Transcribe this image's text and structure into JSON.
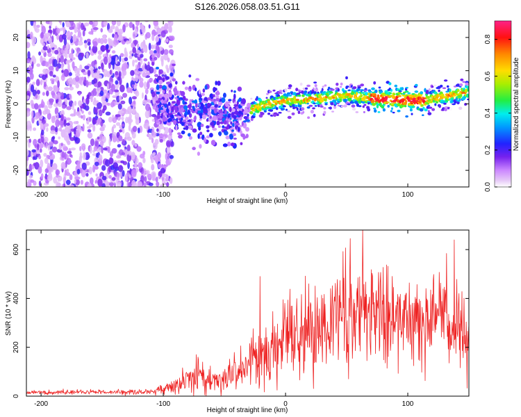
{
  "title": "S126.2026.058.03.51.G11",
  "colors": {
    "snr_line": "#ee2222",
    "colormap": [
      "#ffffff",
      "#e6c8f7",
      "#cc99ff",
      "#9933ee",
      "#6600ee",
      "#1133ff",
      "#00ccff",
      "#22ee66",
      "#ccee00",
      "#ff8800",
      "#ff1111",
      "#ff2277"
    ]
  },
  "chart_data": [
    {
      "type": "heatmap",
      "xlabel": "Height of straight line (km)",
      "ylabel": "Frequency (Hz)",
      "xlim": [
        -212,
        150
      ],
      "ylim": [
        -25,
        25
      ],
      "xticks": [
        -200,
        -100,
        0,
        100
      ],
      "yticks": [
        -20,
        -10,
        0,
        10,
        20
      ],
      "xtick_labels": [
        "-200",
        "-100",
        "0",
        "100"
      ],
      "ytick_labels": [
        "-20",
        "-10",
        "0",
        "10",
        "20"
      ],
      "colorbar": {
        "label": "Normalized spectral amplitude",
        "range": [
          0.0,
          0.9
        ],
        "ticks": [
          0.0,
          0.2,
          0.4,
          0.6,
          0.8
        ],
        "tick_labels": [
          "0.0",
          "0.2",
          "0.4",
          "0.6",
          "0.8"
        ]
      },
      "ridge": [
        {
          "x": -100,
          "freq": 0
        },
        {
          "x": -80,
          "freq": -2
        },
        {
          "x": -60,
          "freq": -3
        },
        {
          "x": -45,
          "freq": -4
        },
        {
          "x": -35,
          "freq": -5
        },
        {
          "x": -25,
          "freq": -1
        },
        {
          "x": 0,
          "freq": 1
        },
        {
          "x": 20,
          "freq": 1.5
        },
        {
          "x": 50,
          "freq": 2.5
        },
        {
          "x": 80,
          "freq": 1.5
        },
        {
          "x": 110,
          "freq": 1
        },
        {
          "x": 150,
          "freq": 3.5
        }
      ],
      "noise_region": {
        "x_from": -212,
        "x_to": -100
      }
    },
    {
      "type": "line",
      "xlabel": "Height of straight line (km)",
      "ylabel": "SNR (10 * v/v)",
      "xlim": [
        -212,
        150
      ],
      "ylim": [
        0,
        680
      ],
      "xticks": [
        -200,
        -100,
        0,
        100
      ],
      "yticks": [
        0,
        200,
        400,
        600
      ],
      "xtick_labels": [
        "-200",
        "-100",
        "0",
        "100"
      ],
      "ytick_labels": [
        "0",
        "200",
        "400",
        "600"
      ],
      "envelope": [
        {
          "x": -212,
          "mean": 15,
          "spread": 8
        },
        {
          "x": -110,
          "mean": 18,
          "spread": 10
        },
        {
          "x": -90,
          "mean": 40,
          "spread": 30
        },
        {
          "x": -75,
          "mean": 90,
          "spread": 60
        },
        {
          "x": -60,
          "mean": 60,
          "spread": 40
        },
        {
          "x": -40,
          "mean": 90,
          "spread": 70
        },
        {
          "x": -20,
          "mean": 160,
          "spread": 120
        },
        {
          "x": 0,
          "mean": 240,
          "spread": 150
        },
        {
          "x": 30,
          "mean": 300,
          "spread": 180
        },
        {
          "x": 60,
          "mean": 340,
          "spread": 200
        },
        {
          "x": 100,
          "mean": 320,
          "spread": 160
        },
        {
          "x": 130,
          "mean": 330,
          "spread": 170
        },
        {
          "x": 150,
          "mean": 250,
          "spread": 180
        }
      ],
      "peaks": [
        {
          "x": 63,
          "y": 680
        },
        {
          "x": 138,
          "y": 640
        },
        {
          "x": 53,
          "y": 645
        },
        {
          "x": -21,
          "y": 490
        },
        {
          "x": -73,
          "y": 170
        }
      ]
    }
  ]
}
